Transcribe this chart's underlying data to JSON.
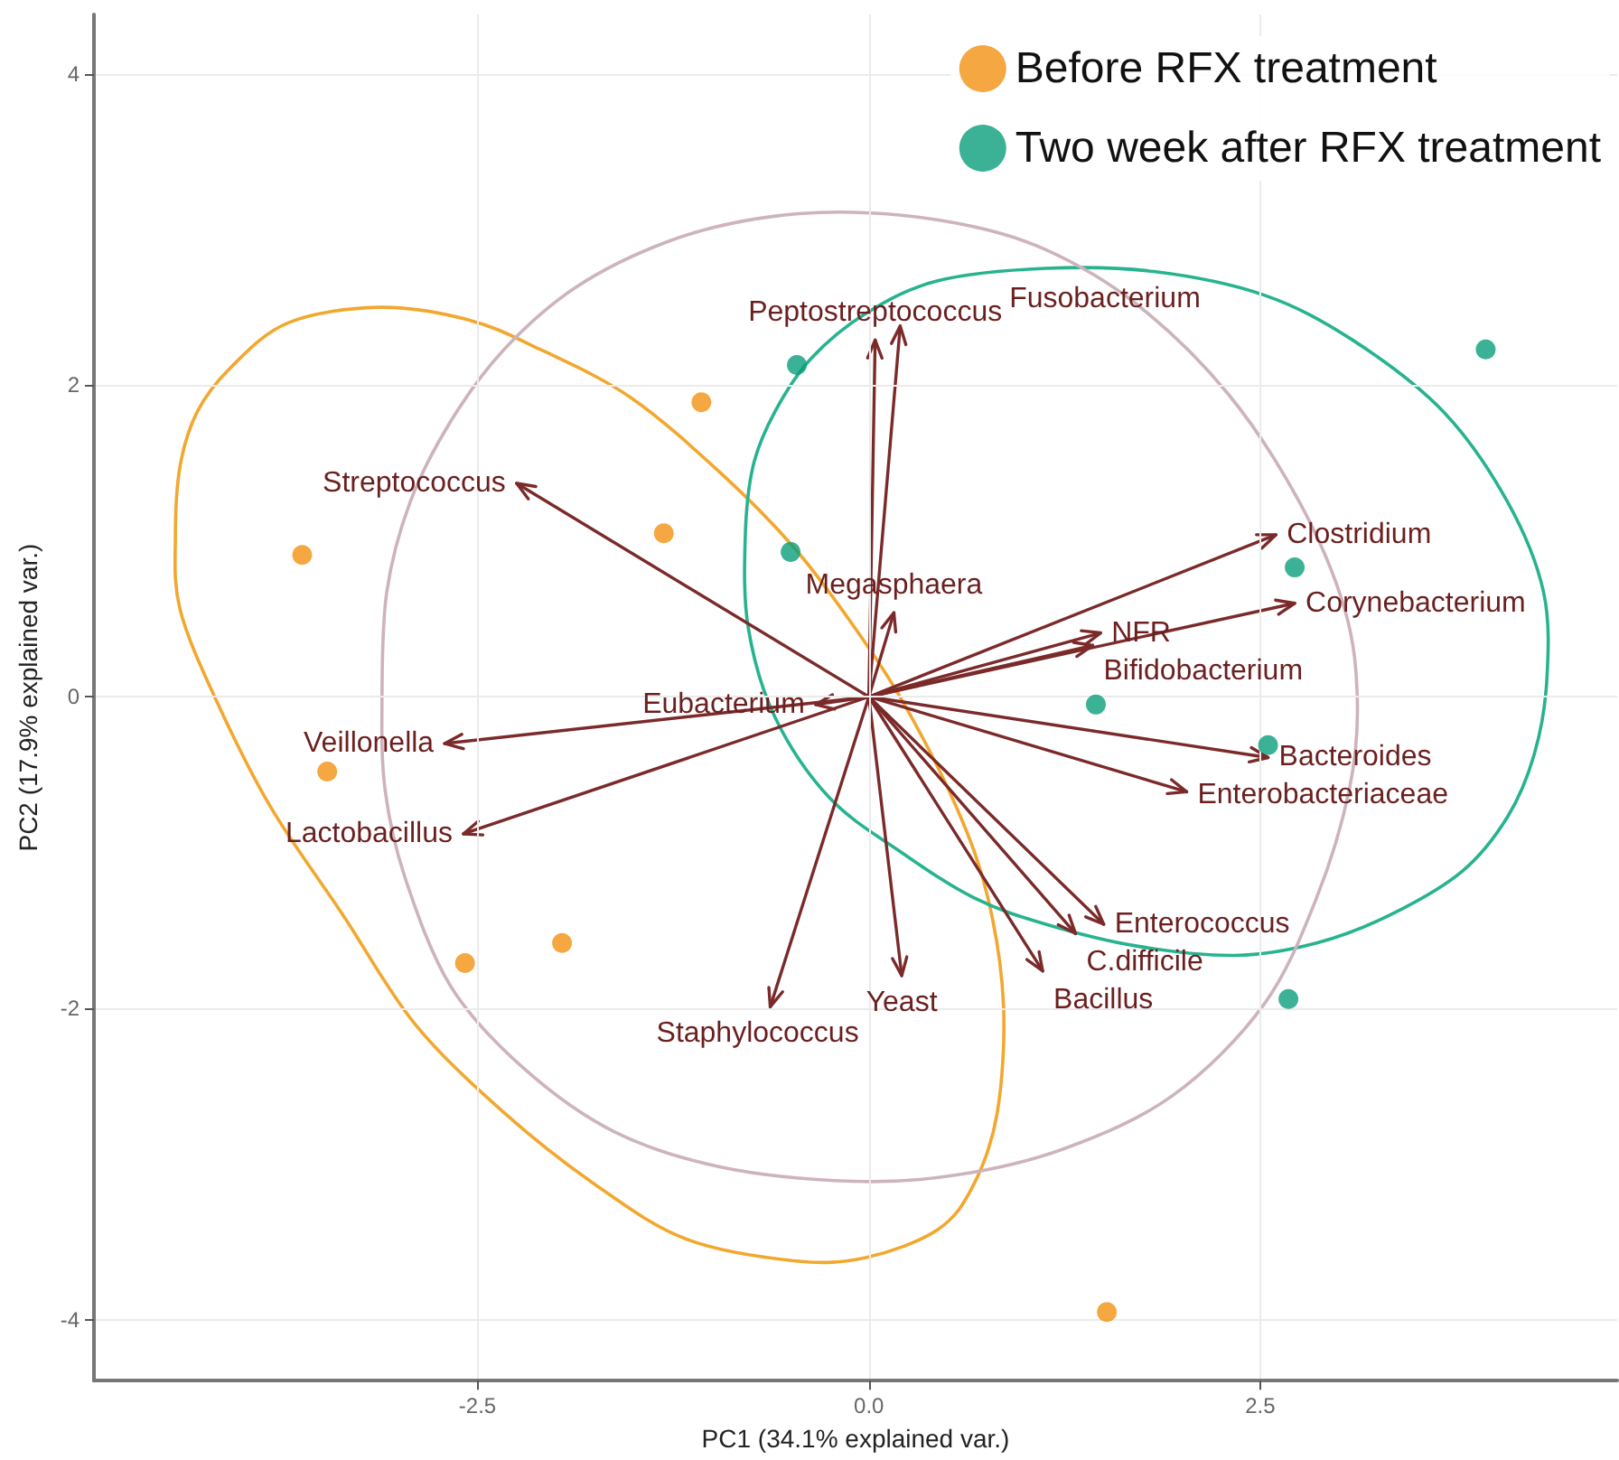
{
  "chart_data": {
    "type": "scatter",
    "xlabel": "PC1 (34.1% explained var.)",
    "ylabel": "PC2 (17.9% explained var.)",
    "xlim": [
      -4.95,
      4.78
    ],
    "ylim": [
      -4.39,
      4.38
    ],
    "xticks": [
      -2.5,
      {
        "value": 0,
        "label": "0.0"
      },
      2.5
    ],
    "yticks": [
      -4,
      -2,
      0,
      2,
      4
    ],
    "grid": true,
    "legend": "top right",
    "marker": "circle",
    "series": [
      {
        "name": "Before RFX treatment",
        "color": "#f29111",
        "x": [
          -3.62,
          -3.46,
          -2.58,
          -1.96,
          -1.31,
          -1.07,
          1.52
        ],
        "values": [
          0.91,
          -0.48,
          -1.71,
          -1.58,
          1.05,
          1.89,
          -3.95
        ]
      },
      {
        "name": "Two week after RFX treatment",
        "color": "#0a9e7a",
        "x": [
          -0.46,
          -0.5,
          1.45,
          2.55,
          2.72,
          2.68,
          3.94
        ],
        "values": [
          2.13,
          0.93,
          -0.05,
          -0.31,
          0.83,
          -1.94,
          2.23
        ]
      }
    ],
    "annotations": [
      "Peptostreptococcus",
      "Fusobacterium",
      "Streptococcus",
      "Megasphaera",
      "Clostridium",
      "Corynebacterium",
      "NFR",
      "Eubacterium",
      "Bifidobacterium",
      "Veillonella",
      "Lactobacillus",
      "Bacteroides",
      "Enterobacteriaceae",
      "Enterococcus",
      "C.difficile",
      "Bacillus",
      "Yeast",
      "Staphylococcus"
    ]
  }
}
